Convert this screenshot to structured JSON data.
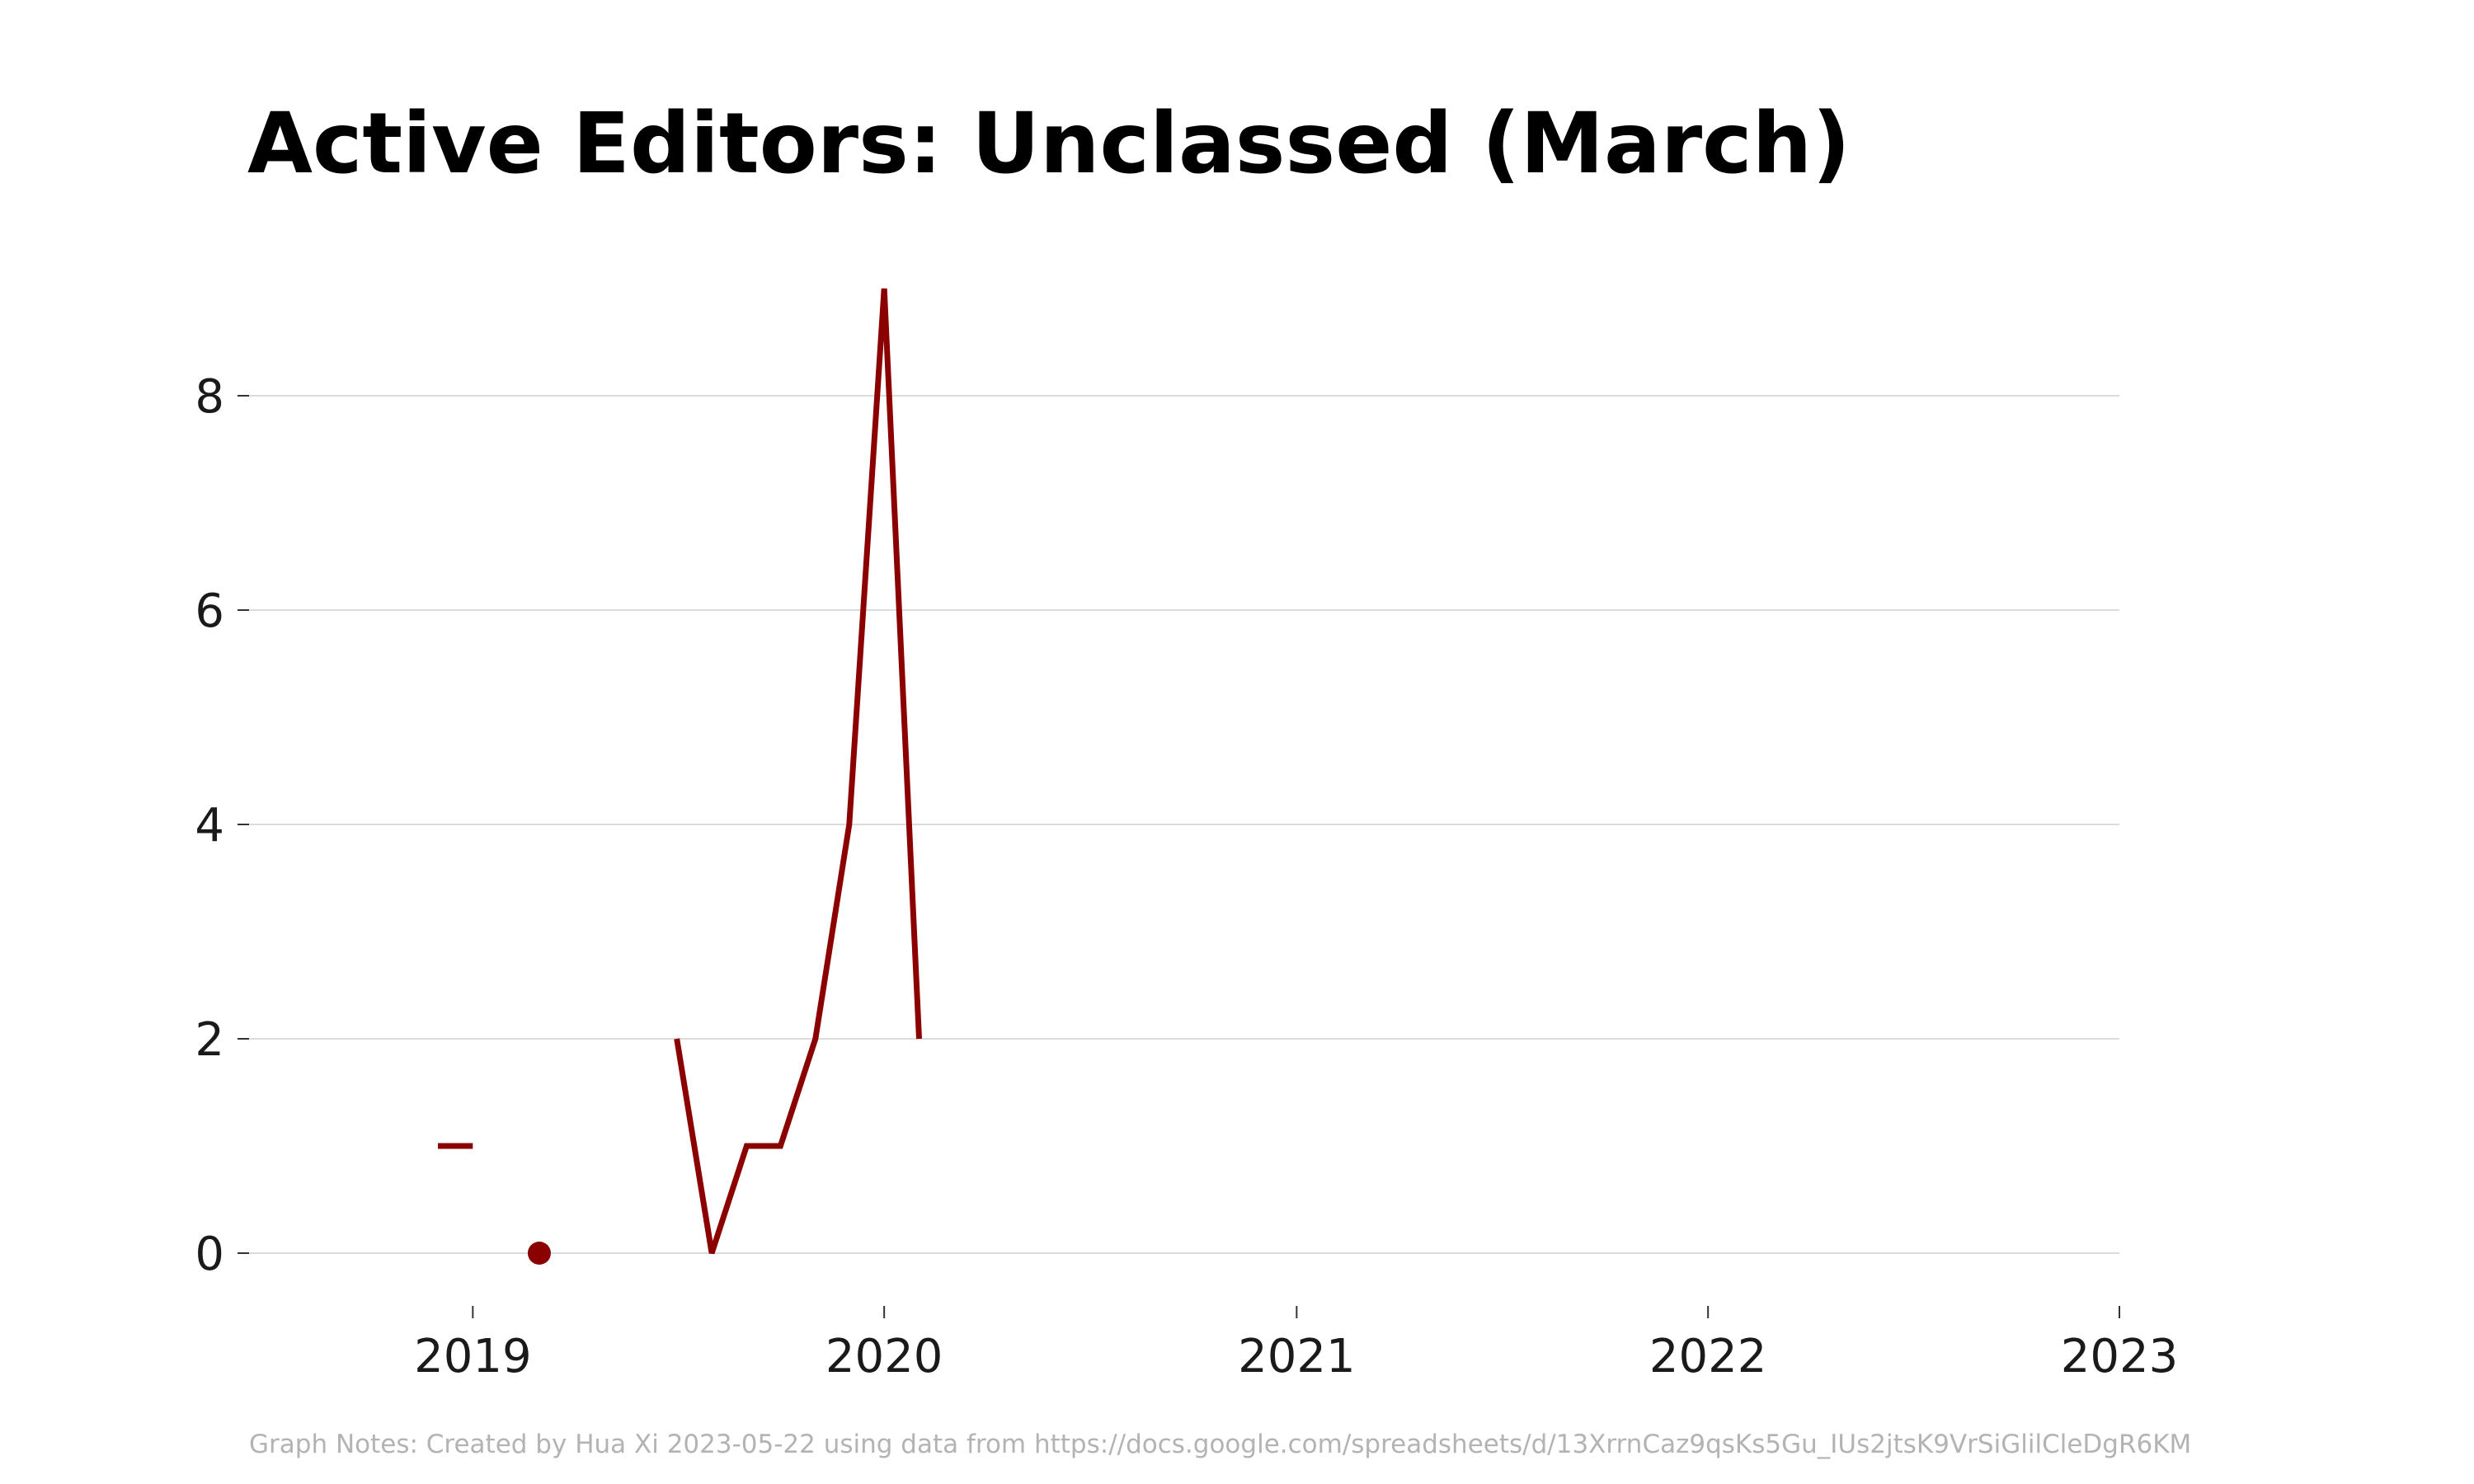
{
  "chart_data": {
    "type": "line",
    "title": "Active Editors: Unclassed (March)",
    "xlabel": "",
    "ylabel": "",
    "xlim": [
      "2018-06-15",
      "2023-01-01"
    ],
    "ylim": [
      -0.5,
      9.5
    ],
    "x_ticks": [
      {
        "value": "2019-01-01",
        "label": "2019"
      },
      {
        "value": "2020-01-01",
        "label": "2020"
      },
      {
        "value": "2021-01-01",
        "label": "2021"
      },
      {
        "value": "2022-01-01",
        "label": "2022"
      },
      {
        "value": "2023-01-01",
        "label": "2023"
      }
    ],
    "y_ticks": [
      0,
      2,
      4,
      6,
      8
    ],
    "grid": "horizontal",
    "legend": "none",
    "series": [
      {
        "color": "#8b0000",
        "segments": [
          {
            "x": [
              "2018-12-01",
              "2019-01-01"
            ],
            "y": [
              1,
              1
            ]
          },
          {
            "x": [
              "2019-03-01"
            ],
            "y": [
              0
            ],
            "marker": "point"
          },
          {
            "x": [
              "2019-07-01",
              "2019-08-01",
              "2019-09-01",
              "2019-10-01",
              "2019-11-01",
              "2019-12-01",
              "2020-01-01",
              "2020-02-01"
            ],
            "y": [
              2,
              0,
              1,
              1,
              2,
              4,
              9,
              2
            ]
          }
        ]
      }
    ]
  },
  "caption": "Graph Notes: Created by Hua Xi 2023-05-22 using data from https://docs.google.com/spreadsheets/d/13XrrnCaz9qsKs5Gu_IUs2jtsK9VrSiGlilCleDgR6KM"
}
